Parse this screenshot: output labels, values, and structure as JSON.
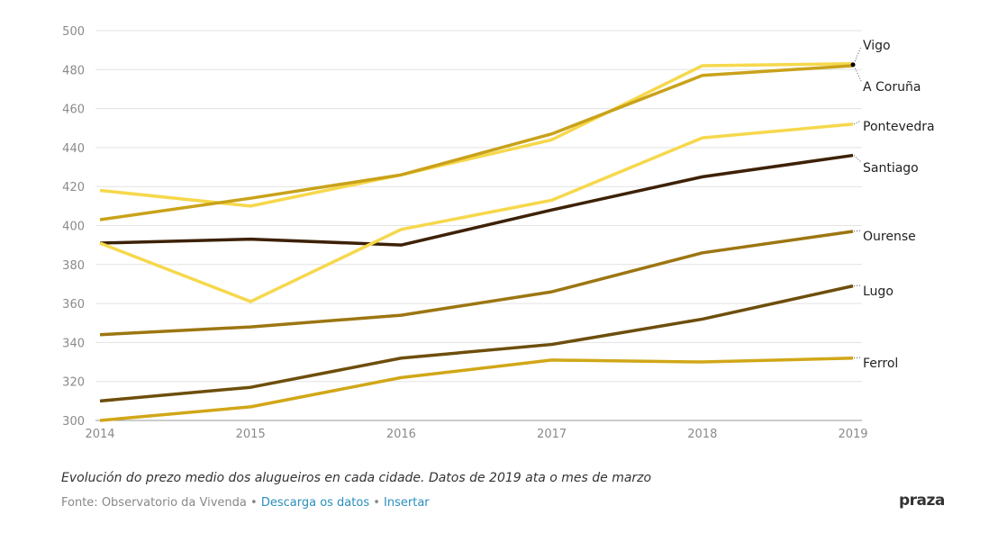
{
  "chart_data": {
    "type": "line",
    "x": [
      2014,
      2015,
      2016,
      2017,
      2018,
      2019
    ],
    "ylim": [
      300,
      500
    ],
    "yticks": [
      300,
      320,
      340,
      360,
      380,
      400,
      420,
      440,
      460,
      480,
      500
    ],
    "grid": true,
    "legend": "direct labels at right",
    "series": [
      {
        "name": "Vigo",
        "color": "#f6d84c",
        "values": [
          418,
          410,
          426,
          444,
          482,
          483
        ]
      },
      {
        "name": "A Coruña",
        "color": "#c9a21a",
        "values": [
          403,
          414,
          426,
          447,
          477,
          482
        ]
      },
      {
        "name": "Pontevedra",
        "color": "#f6d84c",
        "values": [
          391,
          361,
          398,
          413,
          445,
          452
        ]
      },
      {
        "name": "Santiago",
        "color": "#3d2106",
        "values": [
          391,
          393,
          390,
          408,
          425,
          436
        ]
      },
      {
        "name": "Ourense",
        "color": "#9c7612",
        "values": [
          344,
          348,
          354,
          366,
          386,
          397
        ]
      },
      {
        "name": "Lugo",
        "color": "#6d4e0b",
        "values": [
          310,
          317,
          332,
          339,
          352,
          369
        ]
      },
      {
        "name": "Ferrol",
        "color": "#d1a718",
        "values": [
          300,
          307,
          322,
          331,
          330,
          332
        ]
      }
    ]
  },
  "caption": "Evolución do prezo medio dos alugueiros en cada cidade. Datos de 2019 ata o mes de marzo",
  "source": {
    "text": "Fonte: Observatorio da Vivenda",
    "sep": " • ",
    "download": "Descarga os datos",
    "embed": "Insertar"
  },
  "logo": "praza"
}
